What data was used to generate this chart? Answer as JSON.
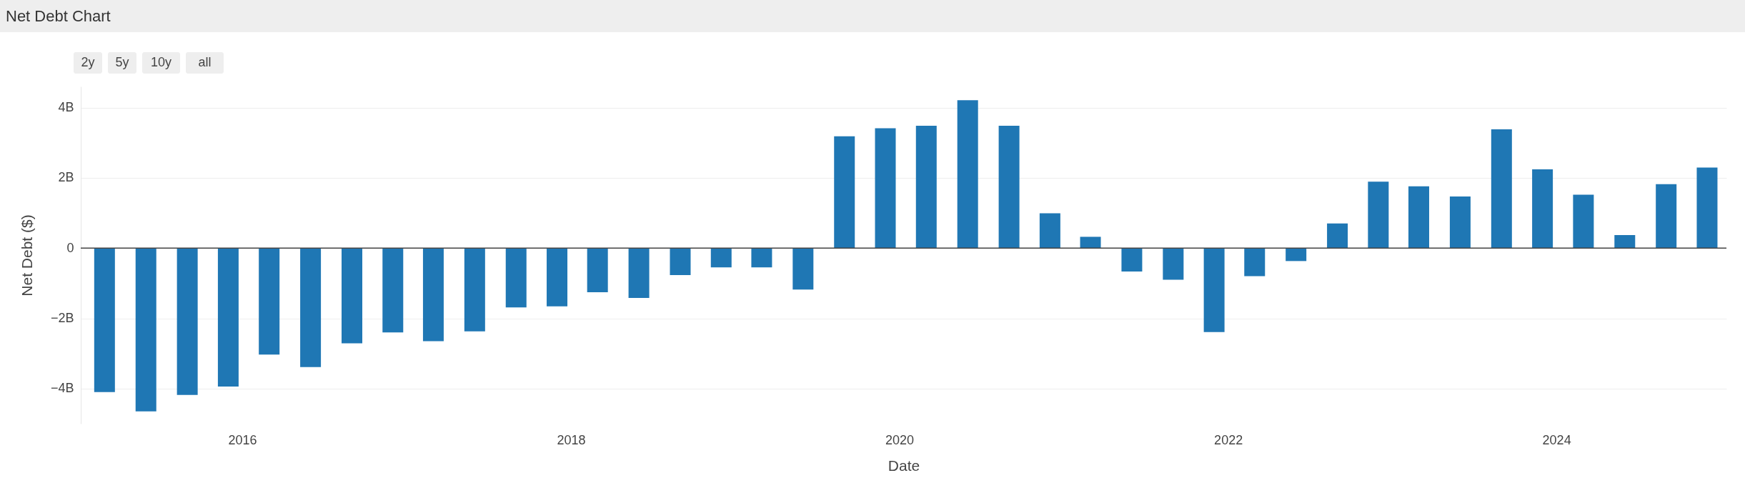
{
  "chart_data": {
    "type": "bar",
    "title": "Net Debt Chart",
    "xlabel": "Date",
    "ylabel": "Net Debt ($)",
    "annotations": [
      "2y",
      "5y",
      "10y",
      "all"
    ],
    "x": [
      "2015-03",
      "2015-06",
      "2015-09",
      "2015-12",
      "2016-03",
      "2016-06",
      "2016-09",
      "2016-12",
      "2017-03",
      "2017-06",
      "2017-09",
      "2017-12",
      "2018-03",
      "2018-06",
      "2018-09",
      "2018-12",
      "2019-03",
      "2019-06",
      "2019-09",
      "2019-12",
      "2020-03",
      "2020-06",
      "2020-09",
      "2020-12",
      "2021-03",
      "2021-06",
      "2021-09",
      "2021-12",
      "2022-03",
      "2022-06",
      "2022-09",
      "2022-12",
      "2023-03",
      "2023-06",
      "2023-09",
      "2023-12",
      "2024-03",
      "2024-06",
      "2024-09",
      "2024-12"
    ],
    "values": [
      -4100000000,
      -4650000000,
      -4180000000,
      -3940000000,
      -3030000000,
      -3390000000,
      -2710000000,
      -2400000000,
      -2650000000,
      -2370000000,
      -1690000000,
      -1660000000,
      -1260000000,
      -1420000000,
      -770000000,
      -550000000,
      -550000000,
      -1180000000,
      3180000000,
      3410000000,
      3480000000,
      4210000000,
      3480000000,
      990000000,
      320000000,
      -670000000,
      -900000000,
      -2390000000,
      -800000000,
      -370000000,
      700000000,
      1890000000,
      1760000000,
      1470000000,
      3380000000,
      2240000000,
      1520000000,
      370000000,
      1820000000,
      2290000000
    ],
    "color": "#1f77b4",
    "xlim": [
      "2015-01-15",
      "2025-01-05"
    ],
    "xticks": [
      "2016",
      "2018",
      "2020",
      "2022",
      "2024"
    ],
    "ylim": [
      -5000000000,
      4600000000
    ],
    "yticks": [
      {
        "value": -4000000000,
        "label": "−4B"
      },
      {
        "value": -2000000000,
        "label": "−2B"
      },
      0,
      {
        "value": 2000000000,
        "label": "2B"
      },
      {
        "value": 4000000000,
        "label": "4B"
      }
    ],
    "ref_lines": [
      {
        "axis": "y",
        "value": 0,
        "color": "#444444"
      }
    ],
    "grid": "y"
  }
}
